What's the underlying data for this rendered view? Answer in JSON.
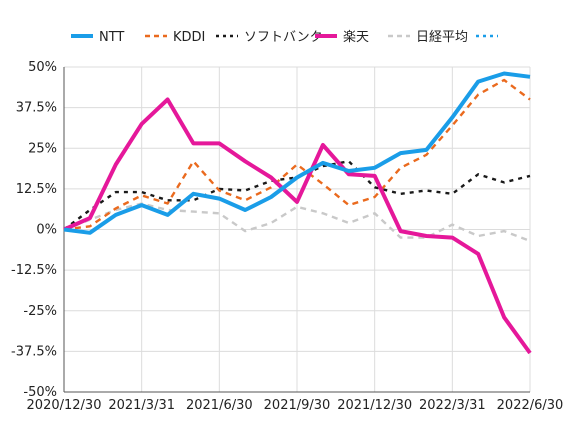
{
  "chart_data": {
    "type": "line",
    "title": "",
    "xlabel": "",
    "ylabel": "",
    "ylim": [
      -50,
      50
    ],
    "yticks": [
      50,
      37.5,
      25,
      12.5,
      0,
      -12.5,
      -25,
      -37.5,
      -50
    ],
    "ytick_labels": [
      "50%",
      "37.5%",
      "25%",
      "12.5%",
      "0%",
      "-12.5%",
      "-25%",
      "-37.5%",
      "-50%"
    ],
    "xlim": [
      0,
      18
    ],
    "xticks": [
      0,
      3,
      6,
      9,
      12,
      15,
      18
    ],
    "xtick_labels": [
      "2020/12/30",
      "2021/3/31",
      "2021/6/30",
      "2021/9/30",
      "2021/12/30",
      "2022/3/31",
      "2022/6/30"
    ],
    "grid": true,
    "legend_position": "top",
    "series": [
      {
        "name": "NTT",
        "color": "#1a9de8",
        "style": "solid",
        "x": [
          0,
          1,
          2,
          3,
          4,
          5,
          6,
          7,
          8,
          9,
          10,
          11,
          12,
          13,
          14,
          15,
          16,
          17,
          18
        ],
        "values": [
          0,
          -1,
          4.5,
          7.5,
          4.5,
          11,
          9.5,
          6,
          10,
          16,
          20.5,
          18,
          19,
          23.5,
          24.5,
          34.5,
          45.5,
          48,
          47
        ]
      },
      {
        "name": "KDDI",
        "color": "#ea6a1e",
        "style": "dashed",
        "x": [
          0,
          1,
          2,
          3,
          4,
          5,
          6,
          7,
          8,
          9,
          10,
          11,
          12,
          13,
          14,
          15,
          16,
          17,
          18
        ],
        "values": [
          0,
          1,
          6.5,
          10.5,
          8,
          21,
          12,
          9,
          13,
          20,
          14,
          7.5,
          10,
          19,
          23,
          32,
          41.5,
          46,
          40
        ]
      },
      {
        "name": "ソフトバンク",
        "color": "#1a1a1a",
        "style": "dotted",
        "x": [
          0,
          1,
          2,
          3,
          4,
          5,
          6,
          7,
          8,
          9,
          10,
          11,
          12,
          13,
          14,
          15,
          16,
          17,
          18
        ],
        "values": [
          0,
          6,
          11.5,
          11.5,
          9,
          9,
          12.5,
          12,
          15,
          16,
          19.5,
          21,
          13,
          11,
          12,
          11,
          17,
          14.5,
          16.5
        ]
      },
      {
        "name": "楽天",
        "color": "#e5189a",
        "style": "solid",
        "x": [
          0,
          1,
          2,
          3,
          4,
          5,
          6,
          7,
          8,
          9,
          10,
          11,
          12,
          13,
          14,
          15,
          16,
          17,
          18
        ],
        "values": [
          0,
          3.5,
          20,
          32.5,
          40,
          26.5,
          26.5,
          21,
          16,
          8.5,
          26,
          17,
          16.5,
          -0.5,
          -2,
          -2.5,
          -7.5,
          -27,
          -38
        ]
      },
      {
        "name": "日経平均",
        "color": "#c9c9c9",
        "style": "dashed",
        "x": [
          0,
          1,
          2,
          3,
          4,
          5,
          6,
          7,
          8,
          9,
          10,
          11,
          12,
          13,
          14,
          15,
          16,
          17,
          18
        ],
        "values": [
          0,
          3,
          6,
          8,
          6,
          5.5,
          5,
          -0.5,
          2,
          7,
          5,
          2,
          5,
          -2.5,
          -2.5,
          1.5,
          -2,
          -0.5,
          -3.5
        ]
      },
      {
        "name": "",
        "color": "#1a9de8",
        "style": "dotted",
        "x": [],
        "values": []
      }
    ]
  }
}
